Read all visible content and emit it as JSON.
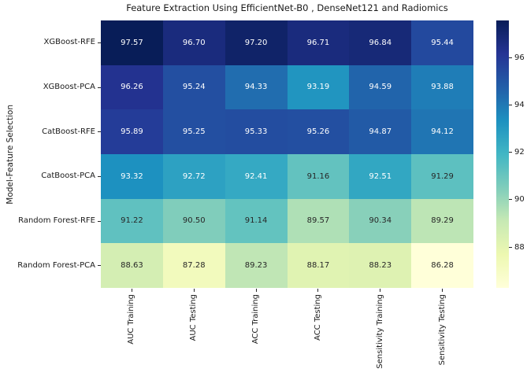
{
  "chart_data": {
    "type": "heatmap",
    "title": "Feature Extraction Using EfficientNet-B0 , DenseNet121 and Radiomics",
    "ylabel": "Model-Feature Selection",
    "xlabel": "",
    "rows": [
      "XGBoost-RFE",
      "XGBoost-PCA",
      "CatBoost-RFE",
      "CatBoost-PCA",
      "Random Forest-RFE",
      "Random Forest-PCA"
    ],
    "columns": [
      "AUC Training",
      "AUC Testing",
      "ACC Training",
      "ACC Testing",
      "Sensitivity Training",
      "Sensitivity Testing"
    ],
    "values": [
      [
        97.57,
        96.7,
        97.2,
        96.71,
        96.84,
        95.44
      ],
      [
        96.26,
        95.24,
        94.33,
        93.19,
        94.59,
        93.88
      ],
      [
        95.89,
        95.25,
        95.33,
        95.26,
        94.87,
        94.12
      ],
      [
        93.32,
        92.72,
        92.41,
        91.16,
        92.51,
        91.29
      ],
      [
        91.22,
        90.5,
        91.14,
        89.57,
        90.34,
        89.29
      ],
      [
        88.63,
        87.28,
        89.23,
        88.17,
        88.23,
        86.28
      ]
    ],
    "value_format_decimals": 2,
    "vmin": 86.28,
    "vmax": 97.57,
    "colormap_name": "YlGnBu",
    "colormap_stops": [
      "#ffffd9",
      "#edf8b1",
      "#c7e9b4",
      "#7fcdbb",
      "#41b6c4",
      "#1d91c0",
      "#225ea8",
      "#253494",
      "#081d58"
    ],
    "colorbar_ticks": [
      96,
      94,
      92,
      90,
      88
    ],
    "legend_position": "right",
    "grid": false,
    "annotation_text_colors": {
      "light": "#ffffff",
      "dark": "#262626"
    },
    "axis_text_color": "#1a1a1a"
  }
}
